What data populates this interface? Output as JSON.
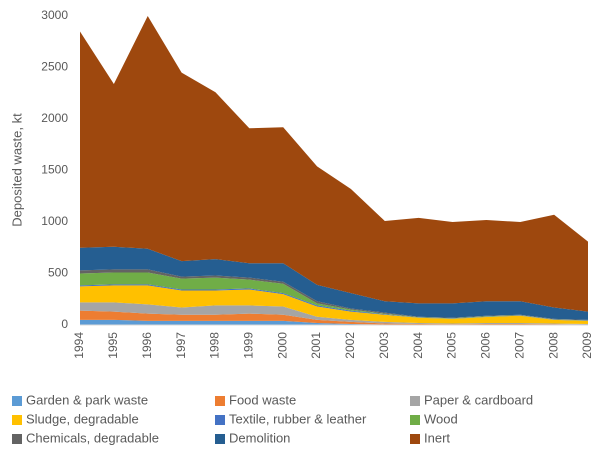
{
  "chart_data": {
    "type": "stacked-area",
    "y_label": "Deposited waste, kt",
    "categories": [
      "1994",
      "1995",
      "1996",
      "1997",
      "1998",
      "1999",
      "2000",
      "2001",
      "2002",
      "2003",
      "2004",
      "2005",
      "2006",
      "2007",
      "2008",
      "2009"
    ],
    "ylim": [
      0,
      3000
    ],
    "yticks": [
      0,
      500,
      1000,
      1500,
      2000,
      2500,
      3000
    ],
    "legend": "bottom",
    "series": [
      {
        "name": "Garden & park waste",
        "color": "#5b9bd5",
        "values": [
          50,
          50,
          40,
          40,
          40,
          40,
          40,
          20,
          10,
          5,
          5,
          4,
          5,
          5,
          4,
          3
        ]
      },
      {
        "name": "Food waste",
        "color": "#ed7d31",
        "values": [
          90,
          80,
          70,
          60,
          60,
          70,
          60,
          30,
          20,
          10,
          5,
          4,
          5,
          5,
          4,
          2
        ]
      },
      {
        "name": "Paper & cardboard",
        "color": "#a5a5a5",
        "values": [
          80,
          90,
          90,
          70,
          90,
          80,
          80,
          30,
          20,
          15,
          10,
          7,
          10,
          10,
          7,
          5
        ]
      },
      {
        "name": "Sludge, degradable",
        "color": "#ffc000",
        "values": [
          155,
          165,
          185,
          165,
          145,
          155,
          120,
          100,
          80,
          70,
          50,
          45,
          58,
          70,
          35,
          30
        ]
      },
      {
        "name": "Textile, rubber & leather",
        "color": "#4472c4",
        "values": [
          10,
          10,
          10,
          10,
          10,
          10,
          10,
          10,
          10,
          5,
          2,
          2,
          2,
          2,
          2,
          2
        ]
      },
      {
        "name": "Wood",
        "color": "#70ad47",
        "values": [
          115,
          115,
          115,
          105,
          115,
          85,
          90,
          20,
          10,
          5,
          3,
          3,
          5,
          3,
          3,
          3
        ]
      },
      {
        "name": "Chemicals, degradable",
        "color": "#636363",
        "values": [
          30,
          30,
          30,
          20,
          20,
          20,
          20,
          20,
          10,
          10,
          5,
          5,
          5,
          5,
          5,
          5
        ]
      },
      {
        "name": "Demolition",
        "color": "#255e91",
        "values": [
          220,
          220,
          200,
          150,
          160,
          140,
          180,
          160,
          150,
          110,
          130,
          140,
          140,
          130,
          110,
          80
        ]
      },
      {
        "name": "Inert",
        "color": "#9e480e",
        "values": [
          2100,
          1580,
          2260,
          1830,
          1620,
          1310,
          1320,
          1150,
          1010,
          780,
          830,
          790,
          790,
          770,
          900,
          680
        ]
      }
    ]
  }
}
